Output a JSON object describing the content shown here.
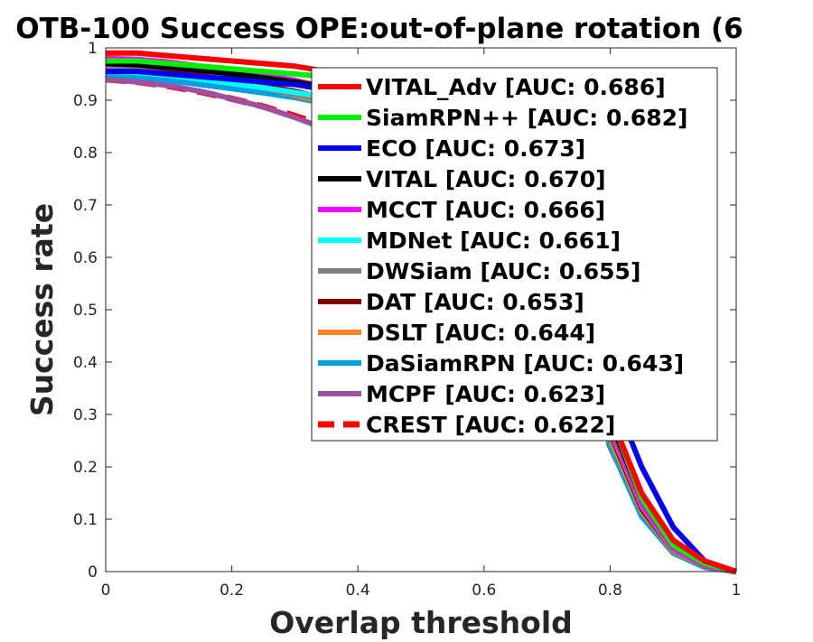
{
  "chart_data": {
    "type": "line",
    "title": "OTB-100 Success OPE:out-of-plane rotation (6",
    "xlabel": "Overlap threshold",
    "ylabel": "Success rate",
    "xlim": [
      0,
      1
    ],
    "ylim": [
      0,
      1
    ],
    "xticks": [
      "0",
      "0.2",
      "0.4",
      "0.6",
      "0.8",
      "1"
    ],
    "yticks": [
      "0",
      "0.1",
      "0.2",
      "0.3",
      "0.4",
      "0.5",
      "0.6",
      "0.7",
      "0.8",
      "0.9",
      "1"
    ],
    "grid": false,
    "legend_position": "top-right",
    "x": [
      0,
      0.05,
      0.1,
      0.15,
      0.2,
      0.25,
      0.3,
      0.35,
      0.4,
      0.45,
      0.5,
      0.55,
      0.6,
      0.65,
      0.7,
      0.75,
      0.8,
      0.85,
      0.9,
      0.95,
      1.0
    ],
    "series": [
      {
        "name": "VITAL_Adv [AUC: 0.686]",
        "color": "#ff0000",
        "dash": "solid",
        "values": [
          0.99,
          0.99,
          0.985,
          0.98,
          0.975,
          0.97,
          0.965,
          0.955,
          0.94,
          0.92,
          0.9,
          0.87,
          0.83,
          0.76,
          0.66,
          0.5,
          0.3,
          0.15,
          0.06,
          0.02,
          0.0
        ]
      },
      {
        "name": "SiamRPN++ [AUC: 0.682]",
        "color": "#00ee00",
        "dash": "solid",
        "values": [
          0.975,
          0.975,
          0.97,
          0.965,
          0.96,
          0.955,
          0.95,
          0.945,
          0.935,
          0.915,
          0.895,
          0.865,
          0.82,
          0.75,
          0.65,
          0.49,
          0.3,
          0.14,
          0.05,
          0.015,
          0.0
        ]
      },
      {
        "name": "ECO [AUC: 0.673]",
        "color": "#0000ee",
        "dash": "solid",
        "values": [
          0.955,
          0.955,
          0.95,
          0.945,
          0.94,
          0.935,
          0.93,
          0.92,
          0.91,
          0.89,
          0.87,
          0.84,
          0.8,
          0.74,
          0.65,
          0.52,
          0.35,
          0.2,
          0.085,
          0.02,
          0.0
        ]
      },
      {
        "name": "VITAL [AUC: 0.670]",
        "color": "#000000",
        "dash": "solid",
        "values": [
          0.97,
          0.968,
          0.963,
          0.957,
          0.95,
          0.943,
          0.935,
          0.925,
          0.91,
          0.89,
          0.87,
          0.84,
          0.8,
          0.73,
          0.63,
          0.48,
          0.29,
          0.14,
          0.05,
          0.015,
          0.0
        ]
      },
      {
        "name": "MCCT [AUC: 0.666]",
        "color": "#ff00ff",
        "dash": "solid",
        "values": [
          0.98,
          0.978,
          0.973,
          0.965,
          0.957,
          0.948,
          0.938,
          0.925,
          0.91,
          0.89,
          0.865,
          0.835,
          0.79,
          0.72,
          0.62,
          0.47,
          0.28,
          0.13,
          0.045,
          0.012,
          0.0
        ]
      },
      {
        "name": "MDNet [AUC: 0.661]",
        "color": "#00ffff",
        "dash": "solid",
        "values": [
          0.955,
          0.953,
          0.948,
          0.94,
          0.932,
          0.924,
          0.915,
          0.905,
          0.89,
          0.87,
          0.85,
          0.82,
          0.78,
          0.71,
          0.61,
          0.46,
          0.28,
          0.13,
          0.045,
          0.012,
          0.0
        ]
      },
      {
        "name": "DWSiam [AUC: 0.655]",
        "color": "#808080",
        "dash": "solid",
        "values": [
          0.96,
          0.957,
          0.95,
          0.942,
          0.933,
          0.923,
          0.912,
          0.9,
          0.885,
          0.865,
          0.84,
          0.81,
          0.77,
          0.7,
          0.6,
          0.45,
          0.27,
          0.125,
          0.04,
          0.01,
          0.0
        ]
      },
      {
        "name": "DAT [AUC: 0.653]",
        "color": "#800000",
        "dash": "solid",
        "values": [
          0.965,
          0.962,
          0.955,
          0.947,
          0.938,
          0.928,
          0.917,
          0.903,
          0.885,
          0.863,
          0.838,
          0.806,
          0.765,
          0.695,
          0.595,
          0.445,
          0.265,
          0.12,
          0.04,
          0.01,
          0.0
        ]
      },
      {
        "name": "DSLT [AUC: 0.644]",
        "color": "#ff8022",
        "dash": "solid",
        "values": [
          0.97,
          0.965,
          0.957,
          0.947,
          0.936,
          0.924,
          0.91,
          0.895,
          0.876,
          0.853,
          0.826,
          0.793,
          0.75,
          0.68,
          0.58,
          0.43,
          0.255,
          0.115,
          0.038,
          0.01,
          0.0
        ]
      },
      {
        "name": "DaSiamRPN [AUC: 0.643]",
        "color": "#00a0e0",
        "dash": "solid",
        "values": [
          0.95,
          0.945,
          0.938,
          0.93,
          0.922,
          0.914,
          0.905,
          0.893,
          0.876,
          0.855,
          0.83,
          0.8,
          0.76,
          0.69,
          0.585,
          0.42,
          0.24,
          0.105,
          0.035,
          0.008,
          0.0
        ]
      },
      {
        "name": "MCPF [AUC: 0.623]",
        "color": "#a050a0",
        "dash": "solid",
        "values": [
          0.94,
          0.935,
          0.928,
          0.917,
          0.903,
          0.887,
          0.867,
          0.845,
          0.82,
          0.795,
          0.77,
          0.74,
          0.705,
          0.64,
          0.55,
          0.41,
          0.25,
          0.12,
          0.04,
          0.012,
          0.0
        ]
      },
      {
        "name": "CREST [AUC: 0.622]",
        "color": "#ff0000",
        "dash": "dashed",
        "values": [
          0.94,
          0.935,
          0.927,
          0.916,
          0.903,
          0.888,
          0.87,
          0.85,
          0.827,
          0.802,
          0.776,
          0.745,
          0.705,
          0.64,
          0.548,
          0.405,
          0.24,
          0.11,
          0.038,
          0.01,
          0.0
        ]
      }
    ]
  }
}
